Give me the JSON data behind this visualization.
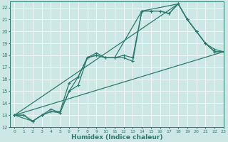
{
  "xlabel": "Humidex (Indice chaleur)",
  "bg_color": "#cde8e4",
  "line_color": "#2a7a6e",
  "grid_color": "#b8d8d4",
  "xmin": -0.5,
  "xmax": 23,
  "ymin": 12,
  "ymax": 22.5,
  "line1_x": [
    0,
    1,
    2,
    3,
    4,
    5,
    6,
    7,
    8,
    9,
    10,
    11,
    12,
    13,
    14,
    15,
    16,
    17,
    18,
    19,
    20,
    21,
    22,
    23
  ],
  "line1_y": [
    13,
    13,
    12.5,
    13,
    13.3,
    13.3,
    15.7,
    16.2,
    17.8,
    18.0,
    17.8,
    17.8,
    17.8,
    17.5,
    21.7,
    21.7,
    21.7,
    21.5,
    22.3,
    21.0,
    20.0,
    19.0,
    18.3,
    18.3
  ],
  "line2_x": [
    0,
    1,
    2,
    3,
    4,
    5,
    6,
    7,
    8,
    9,
    10,
    11,
    12,
    13,
    14,
    15,
    16,
    17,
    18,
    19,
    20,
    21,
    22,
    23
  ],
  "line2_y": [
    13,
    13,
    12.5,
    13,
    13.5,
    13.2,
    15.0,
    15.5,
    17.8,
    18.2,
    17.8,
    17.8,
    18.0,
    17.8,
    21.7,
    21.7,
    21.7,
    21.5,
    22.3,
    21.0,
    20.0,
    19.0,
    18.3,
    18.3
  ],
  "line3_x": [
    0,
    2,
    3,
    4,
    5,
    6,
    7,
    8,
    9,
    10,
    11,
    14,
    18,
    19,
    20,
    21,
    22,
    23
  ],
  "line3_y": [
    13,
    12.5,
    13,
    13.3,
    13.2,
    15.0,
    16.2,
    17.8,
    18.0,
    17.8,
    17.8,
    21.7,
    22.3,
    21.0,
    20.0,
    19.0,
    18.5,
    18.3
  ],
  "line4_x": [
    0,
    23
  ],
  "line4_y": [
    13,
    18.3
  ],
  "line5_x": [
    0,
    18
  ],
  "line5_y": [
    13,
    22.3
  ],
  "xticks": [
    0,
    1,
    2,
    3,
    4,
    5,
    6,
    7,
    8,
    9,
    10,
    11,
    12,
    13,
    14,
    15,
    16,
    17,
    18,
    19,
    20,
    21,
    22,
    23
  ],
  "yticks": [
    12,
    13,
    14,
    15,
    16,
    17,
    18,
    19,
    20,
    21,
    22
  ]
}
